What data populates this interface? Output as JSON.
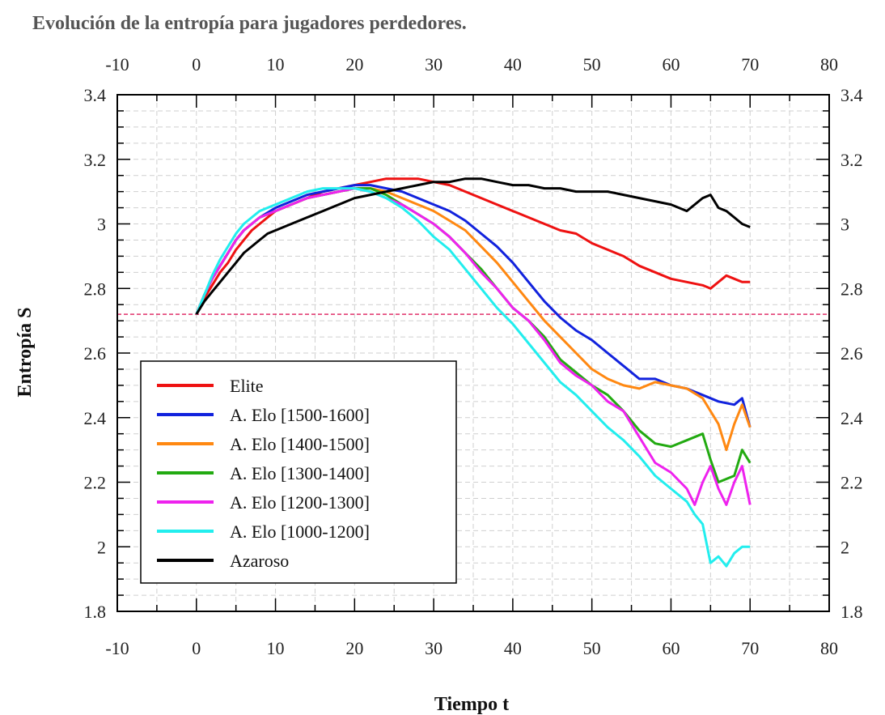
{
  "chart_data": {
    "type": "line",
    "title": "Evolución de la entropía para jugadores perdedores.",
    "xlabel": "Tiempo t",
    "ylabel": "Entropía S",
    "xlim": [
      -10,
      80
    ],
    "ylim": [
      1.8,
      3.4
    ],
    "x_ticks": [
      "-10",
      "0",
      "10",
      "20",
      "30",
      "40",
      "50",
      "60",
      "70",
      "80"
    ],
    "y_ticks": [
      "1.8",
      "2",
      "2.2",
      "2.4",
      "2.6",
      "2.8",
      "3",
      "3.2",
      "3.4"
    ],
    "grid": true,
    "legend_position": "lower-left",
    "reference_line": {
      "y": 2.72,
      "color": "#e0306a",
      "style": "dashed"
    },
    "series": [
      {
        "name": "Elite",
        "color": "#ee1111",
        "points": [
          [
            0,
            2.72
          ],
          [
            1,
            2.77
          ],
          [
            2,
            2.81
          ],
          [
            3,
            2.85
          ],
          [
            4,
            2.88
          ],
          [
            5,
            2.92
          ],
          [
            6,
            2.95
          ],
          [
            7,
            2.98
          ],
          [
            8,
            3.0
          ],
          [
            9,
            3.02
          ],
          [
            10,
            3.04
          ],
          [
            12,
            3.06
          ],
          [
            14,
            3.08
          ],
          [
            16,
            3.1
          ],
          [
            18,
            3.11
          ],
          [
            20,
            3.12
          ],
          [
            22,
            3.13
          ],
          [
            24,
            3.14
          ],
          [
            26,
            3.14
          ],
          [
            28,
            3.14
          ],
          [
            30,
            3.13
          ],
          [
            32,
            3.12
          ],
          [
            34,
            3.1
          ],
          [
            36,
            3.08
          ],
          [
            38,
            3.06
          ],
          [
            40,
            3.04
          ],
          [
            42,
            3.02
          ],
          [
            44,
            3.0
          ],
          [
            46,
            2.98
          ],
          [
            48,
            2.97
          ],
          [
            50,
            2.94
          ],
          [
            52,
            2.92
          ],
          [
            54,
            2.9
          ],
          [
            56,
            2.87
          ],
          [
            58,
            2.85
          ],
          [
            60,
            2.83
          ],
          [
            62,
            2.82
          ],
          [
            64,
            2.81
          ],
          [
            65,
            2.8
          ],
          [
            66,
            2.82
          ],
          [
            67,
            2.84
          ],
          [
            68,
            2.83
          ],
          [
            69,
            2.82
          ],
          [
            70,
            2.82
          ]
        ]
      },
      {
        "name": "A. Elo [1500-1600]",
        "color": "#1122dd",
        "points": [
          [
            0,
            2.72
          ],
          [
            1,
            2.78
          ],
          [
            2,
            2.83
          ],
          [
            3,
            2.87
          ],
          [
            4,
            2.91
          ],
          [
            5,
            2.95
          ],
          [
            6,
            2.98
          ],
          [
            7,
            3.0
          ],
          [
            8,
            3.02
          ],
          [
            10,
            3.05
          ],
          [
            12,
            3.07
          ],
          [
            14,
            3.09
          ],
          [
            16,
            3.1
          ],
          [
            18,
            3.11
          ],
          [
            20,
            3.12
          ],
          [
            22,
            3.12
          ],
          [
            24,
            3.11
          ],
          [
            26,
            3.1
          ],
          [
            28,
            3.08
          ],
          [
            30,
            3.06
          ],
          [
            32,
            3.04
          ],
          [
            34,
            3.01
          ],
          [
            36,
            2.97
          ],
          [
            38,
            2.93
          ],
          [
            40,
            2.88
          ],
          [
            42,
            2.82
          ],
          [
            44,
            2.76
          ],
          [
            46,
            2.71
          ],
          [
            48,
            2.67
          ],
          [
            50,
            2.64
          ],
          [
            52,
            2.6
          ],
          [
            54,
            2.56
          ],
          [
            56,
            2.52
          ],
          [
            58,
            2.52
          ],
          [
            60,
            2.5
          ],
          [
            62,
            2.49
          ],
          [
            64,
            2.47
          ],
          [
            66,
            2.45
          ],
          [
            68,
            2.44
          ],
          [
            69,
            2.46
          ],
          [
            70,
            2.37
          ]
        ]
      },
      {
        "name": "A. Elo [1400-1500]",
        "color": "#ff8811",
        "points": [
          [
            0,
            2.72
          ],
          [
            1,
            2.78
          ],
          [
            2,
            2.83
          ],
          [
            3,
            2.87
          ],
          [
            4,
            2.91
          ],
          [
            5,
            2.95
          ],
          [
            6,
            2.98
          ],
          [
            7,
            3.0
          ],
          [
            8,
            3.02
          ],
          [
            10,
            3.04
          ],
          [
            12,
            3.06
          ],
          [
            14,
            3.08
          ],
          [
            16,
            3.09
          ],
          [
            18,
            3.1
          ],
          [
            20,
            3.11
          ],
          [
            22,
            3.11
          ],
          [
            24,
            3.1
          ],
          [
            26,
            3.08
          ],
          [
            28,
            3.06
          ],
          [
            30,
            3.04
          ],
          [
            32,
            3.01
          ],
          [
            34,
            2.98
          ],
          [
            36,
            2.93
          ],
          [
            38,
            2.88
          ],
          [
            40,
            2.82
          ],
          [
            42,
            2.76
          ],
          [
            44,
            2.7
          ],
          [
            46,
            2.65
          ],
          [
            48,
            2.6
          ],
          [
            50,
            2.55
          ],
          [
            52,
            2.52
          ],
          [
            54,
            2.5
          ],
          [
            56,
            2.49
          ],
          [
            58,
            2.51
          ],
          [
            60,
            2.5
          ],
          [
            62,
            2.49
          ],
          [
            64,
            2.46
          ],
          [
            66,
            2.38
          ],
          [
            67,
            2.3
          ],
          [
            68,
            2.38
          ],
          [
            69,
            2.44
          ],
          [
            70,
            2.37
          ]
        ]
      },
      {
        "name": "A. Elo [1300-1400]",
        "color": "#22aa11",
        "points": [
          [
            0,
            2.72
          ],
          [
            1,
            2.78
          ],
          [
            2,
            2.83
          ],
          [
            3,
            2.87
          ],
          [
            4,
            2.91
          ],
          [
            5,
            2.95
          ],
          [
            6,
            2.98
          ],
          [
            7,
            3.0
          ],
          [
            8,
            3.02
          ],
          [
            10,
            3.04
          ],
          [
            12,
            3.06
          ],
          [
            14,
            3.08
          ],
          [
            16,
            3.09
          ],
          [
            18,
            3.1
          ],
          [
            20,
            3.11
          ],
          [
            22,
            3.11
          ],
          [
            24,
            3.09
          ],
          [
            26,
            3.06
          ],
          [
            28,
            3.03
          ],
          [
            30,
            3.0
          ],
          [
            32,
            2.96
          ],
          [
            34,
            2.91
          ],
          [
            36,
            2.86
          ],
          [
            38,
            2.8
          ],
          [
            40,
            2.74
          ],
          [
            42,
            2.7
          ],
          [
            44,
            2.65
          ],
          [
            46,
            2.58
          ],
          [
            48,
            2.54
          ],
          [
            50,
            2.5
          ],
          [
            52,
            2.47
          ],
          [
            54,
            2.42
          ],
          [
            56,
            2.36
          ],
          [
            58,
            2.32
          ],
          [
            60,
            2.31
          ],
          [
            62,
            2.33
          ],
          [
            64,
            2.35
          ],
          [
            65,
            2.27
          ],
          [
            66,
            2.2
          ],
          [
            68,
            2.22
          ],
          [
            69,
            2.3
          ],
          [
            70,
            2.26
          ]
        ]
      },
      {
        "name": "A. Elo [1200-1300]",
        "color": "#ee22ee",
        "points": [
          [
            0,
            2.72
          ],
          [
            1,
            2.78
          ],
          [
            2,
            2.83
          ],
          [
            3,
            2.87
          ],
          [
            4,
            2.91
          ],
          [
            5,
            2.95
          ],
          [
            6,
            2.98
          ],
          [
            7,
            3.0
          ],
          [
            8,
            3.02
          ],
          [
            10,
            3.04
          ],
          [
            12,
            3.06
          ],
          [
            14,
            3.08
          ],
          [
            16,
            3.09
          ],
          [
            18,
            3.1
          ],
          [
            20,
            3.11
          ],
          [
            22,
            3.1
          ],
          [
            24,
            3.08
          ],
          [
            26,
            3.06
          ],
          [
            28,
            3.03
          ],
          [
            30,
            3.0
          ],
          [
            32,
            2.96
          ],
          [
            34,
            2.91
          ],
          [
            36,
            2.85
          ],
          [
            38,
            2.8
          ],
          [
            40,
            2.74
          ],
          [
            42,
            2.7
          ],
          [
            44,
            2.64
          ],
          [
            46,
            2.57
          ],
          [
            48,
            2.53
          ],
          [
            50,
            2.5
          ],
          [
            52,
            2.45
          ],
          [
            54,
            2.42
          ],
          [
            56,
            2.34
          ],
          [
            58,
            2.26
          ],
          [
            60,
            2.23
          ],
          [
            62,
            2.18
          ],
          [
            63,
            2.13
          ],
          [
            64,
            2.2
          ],
          [
            65,
            2.25
          ],
          [
            66,
            2.18
          ],
          [
            67,
            2.13
          ],
          [
            68,
            2.2
          ],
          [
            69,
            2.25
          ],
          [
            70,
            2.13
          ]
        ]
      },
      {
        "name": "A. Elo [1000-1200]",
        "color": "#22eeee",
        "points": [
          [
            0,
            2.72
          ],
          [
            1,
            2.78
          ],
          [
            2,
            2.84
          ],
          [
            3,
            2.89
          ],
          [
            4,
            2.93
          ],
          [
            5,
            2.97
          ],
          [
            6,
            3.0
          ],
          [
            7,
            3.02
          ],
          [
            8,
            3.04
          ],
          [
            10,
            3.06
          ],
          [
            12,
            3.08
          ],
          [
            14,
            3.1
          ],
          [
            16,
            3.11
          ],
          [
            18,
            3.11
          ],
          [
            20,
            3.11
          ],
          [
            22,
            3.1
          ],
          [
            24,
            3.08
          ],
          [
            26,
            3.05
          ],
          [
            28,
            3.01
          ],
          [
            30,
            2.96
          ],
          [
            32,
            2.92
          ],
          [
            34,
            2.86
          ],
          [
            36,
            2.8
          ],
          [
            38,
            2.74
          ],
          [
            40,
            2.69
          ],
          [
            42,
            2.63
          ],
          [
            44,
            2.57
          ],
          [
            46,
            2.51
          ],
          [
            48,
            2.47
          ],
          [
            50,
            2.42
          ],
          [
            52,
            2.37
          ],
          [
            54,
            2.33
          ],
          [
            56,
            2.28
          ],
          [
            58,
            2.22
          ],
          [
            60,
            2.18
          ],
          [
            62,
            2.14
          ],
          [
            63,
            2.1
          ],
          [
            64,
            2.07
          ],
          [
            65,
            1.95
          ],
          [
            66,
            1.97
          ],
          [
            67,
            1.94
          ],
          [
            68,
            1.98
          ],
          [
            69,
            2.0
          ],
          [
            70,
            2.0
          ]
        ]
      },
      {
        "name": "Azaroso",
        "color": "#000000",
        "points": [
          [
            0,
            2.72
          ],
          [
            1,
            2.76
          ],
          [
            2,
            2.79
          ],
          [
            3,
            2.82
          ],
          [
            4,
            2.85
          ],
          [
            5,
            2.88
          ],
          [
            6,
            2.91
          ],
          [
            7,
            2.93
          ],
          [
            8,
            2.95
          ],
          [
            9,
            2.97
          ],
          [
            10,
            2.98
          ],
          [
            12,
            3.0
          ],
          [
            14,
            3.02
          ],
          [
            16,
            3.04
          ],
          [
            18,
            3.06
          ],
          [
            20,
            3.08
          ],
          [
            22,
            3.09
          ],
          [
            24,
            3.1
          ],
          [
            26,
            3.11
          ],
          [
            28,
            3.12
          ],
          [
            30,
            3.13
          ],
          [
            32,
            3.13
          ],
          [
            34,
            3.14
          ],
          [
            36,
            3.14
          ],
          [
            38,
            3.13
          ],
          [
            40,
            3.12
          ],
          [
            42,
            3.12
          ],
          [
            44,
            3.11
          ],
          [
            46,
            3.11
          ],
          [
            48,
            3.1
          ],
          [
            50,
            3.1
          ],
          [
            52,
            3.1
          ],
          [
            54,
            3.09
          ],
          [
            56,
            3.08
          ],
          [
            58,
            3.07
          ],
          [
            60,
            3.06
          ],
          [
            62,
            3.04
          ],
          [
            64,
            3.08
          ],
          [
            65,
            3.09
          ],
          [
            66,
            3.05
          ],
          [
            67,
            3.04
          ],
          [
            68,
            3.02
          ],
          [
            69,
            3.0
          ],
          [
            70,
            2.99
          ]
        ]
      }
    ]
  }
}
